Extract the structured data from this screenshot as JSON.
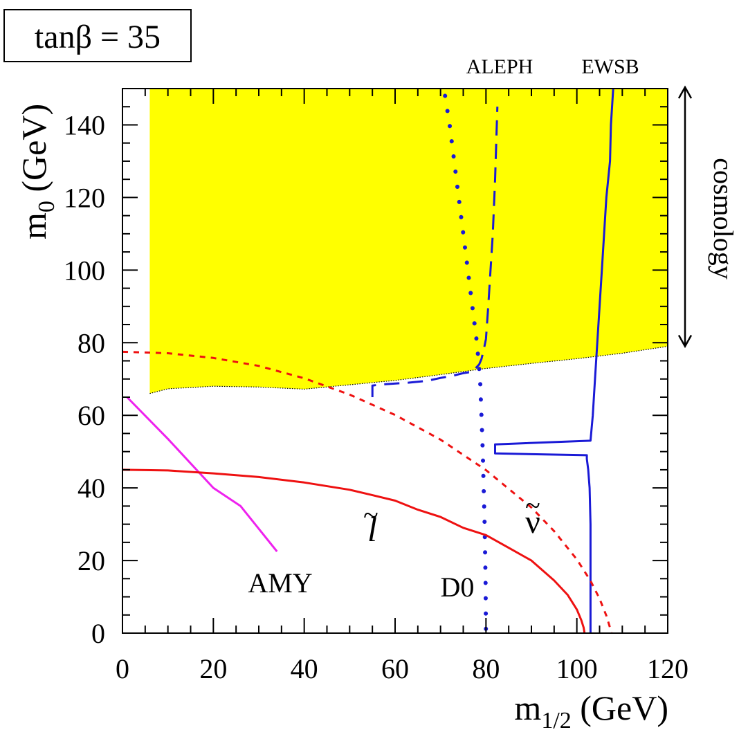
{
  "chart_data": {
    "type": "line",
    "title_box": "tanβ = 35",
    "xlabel": "m",
    "xlabel_sub": "1/2",
    "xlabel_unit": " (GeV)",
    "ylabel": "m",
    "ylabel_sub": "0",
    "ylabel_unit": " (GeV)",
    "xlim": [
      0,
      120
    ],
    "ylim": [
      0,
      150
    ],
    "x_major_ticks": [
      0,
      20,
      40,
      60,
      80,
      100,
      120
    ],
    "x_tick_labels": [
      "0",
      "20",
      "40",
      "60",
      "80",
      "100",
      "120"
    ],
    "y_major_ticks": [
      0,
      20,
      40,
      60,
      80,
      100,
      120,
      140
    ],
    "y_tick_labels": [
      "0",
      "20",
      "40",
      "60",
      "80",
      "100",
      "120",
      "140"
    ],
    "grid": false,
    "cosmology_arrow": {
      "label": "cosmology",
      "y_range": [
        79,
        150
      ]
    },
    "labels": {
      "aleph": "ALEPH",
      "ewsb": "EWSB",
      "amy": "AMY",
      "d0": "D0",
      "slepton": "l",
      "sneutrino": "ν",
      "tilde": "~"
    },
    "colors": {
      "yellow_region": "#ffff00",
      "red": "#ee1111",
      "blue": "#1a1ad6",
      "magenta": "#ee22ee"
    },
    "series": [
      {
        "key": "excluded_region",
        "style": "filled",
        "x": [
          6,
          6,
          10,
          20,
          30,
          40,
          50,
          60,
          70,
          80,
          90,
          100,
          110,
          120,
          120
        ],
        "y": [
          150,
          66,
          67.3,
          68,
          67.8,
          67.2,
          68.4,
          69.6,
          71.2,
          72.9,
          74.3,
          75.6,
          77.1,
          79,
          150
        ]
      },
      {
        "key": "ewsb_boundary",
        "style": "solid-blue",
        "x": [
          103,
          103,
          102.8,
          102.5,
          102.2,
          102.2,
          82,
          82,
          103,
          103.5,
          104,
          104.5,
          105,
          105.5,
          106.5,
          107.3,
          107.5,
          108
        ],
        "y": [
          0,
          30,
          40,
          45,
          48,
          49,
          49.5,
          52,
          53,
          60,
          70,
          80,
          90,
          100,
          120,
          130,
          140,
          150
        ]
      },
      {
        "key": "aleph",
        "style": "dashed-blue",
        "x": [
          55,
          55,
          57,
          63,
          67,
          70,
          73,
          75,
          77,
          78.5,
          79,
          79.5,
          80,
          80.5,
          81,
          81.5,
          82,
          82.5
        ],
        "y": [
          65,
          68.2,
          68.5,
          69,
          69.5,
          70.3,
          71,
          71.6,
          72,
          74,
          75.5,
          78,
          81,
          90,
          100,
          110,
          125,
          145
        ]
      },
      {
        "key": "d0",
        "style": "dotted-blue",
        "x": [
          71,
          72,
          73,
          74,
          75,
          76,
          77,
          78,
          78.7,
          79,
          79.3,
          79.5,
          79.7,
          79.9,
          80
        ],
        "y": [
          148,
          140,
          130,
          120,
          110,
          100,
          90,
          80,
          70,
          60,
          50,
          40,
          30,
          15,
          0
        ]
      },
      {
        "key": "amy",
        "style": "solid-magenta",
        "x": [
          1,
          10,
          20,
          26,
          34
        ],
        "y": [
          65,
          53.5,
          40,
          35,
          22.5
        ]
      },
      {
        "key": "slepton",
        "style": "solid-red",
        "x": [
          0,
          10,
          20,
          30,
          40,
          50,
          55,
          60,
          65,
          70,
          75,
          80,
          85,
          90,
          95,
          98,
          100,
          101,
          101.5,
          101.7
        ],
        "y": [
          45,
          44.8,
          44,
          43,
          41.5,
          39.5,
          38,
          36.5,
          34,
          32,
          29,
          27,
          23.5,
          20,
          14.5,
          10.5,
          6.5,
          3.5,
          1.5,
          0
        ]
      },
      {
        "key": "sneutrino",
        "style": "dashed-red",
        "x": [
          0,
          10,
          20,
          30,
          40,
          50,
          60,
          70,
          80,
          90,
          95,
          100,
          103,
          105,
          106.5,
          107.3,
          107.6
        ],
        "y": [
          77.5,
          77.1,
          75.8,
          73.6,
          70.2,
          65.7,
          60.1,
          53.3,
          44.9,
          34.6,
          28.1,
          20.3,
          14.4,
          9.5,
          4.8,
          1.5,
          0
        ]
      }
    ]
  }
}
